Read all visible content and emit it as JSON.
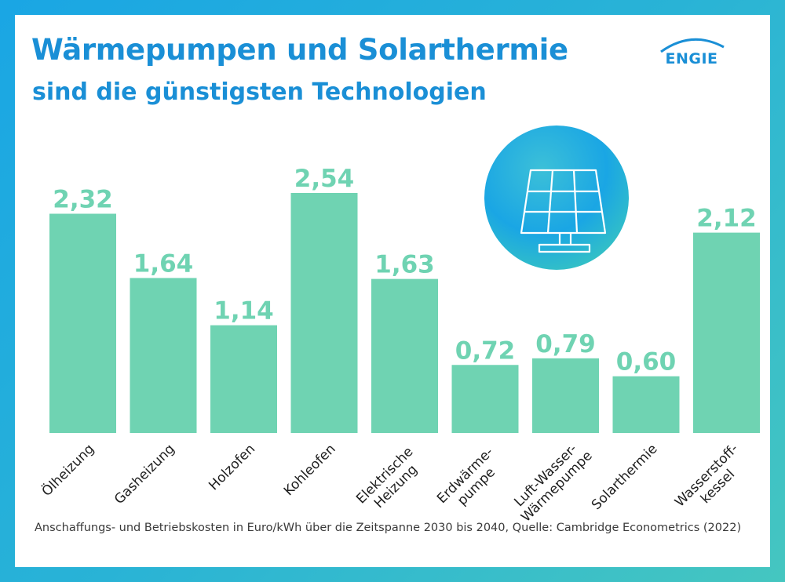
{
  "header": {
    "title": "Wärmepumpen und Solarthermie",
    "subtitle": "sind die günstigsten Technologien"
  },
  "brand": {
    "logo_text": "ENGIE",
    "color": "#1a8fd6"
  },
  "colors": {
    "bar": "#6fd3b2",
    "label": "#6fd3b2",
    "title": "#1a8fd6",
    "frame_start": "#1aa6e4",
    "frame_end": "#45c6c0"
  },
  "icon": {
    "name": "solar-panel-icon"
  },
  "chart_data": {
    "type": "bar",
    "title": "Wärmepumpen und Solarthermie",
    "subtitle": "sind die günstigsten Technologien",
    "categories": [
      [
        "Ölheizung"
      ],
      [
        "Gasheizung"
      ],
      [
        "Holzofen"
      ],
      [
        "Kohleofen"
      ],
      [
        "Elektrische",
        "Heizung"
      ],
      [
        "Erdwärme-",
        "pumpe"
      ],
      [
        "Luft-Wasser-",
        "Wärmepumpe"
      ],
      [
        "Solarthermie"
      ],
      [
        "Wasserstoff-",
        "kessel"
      ]
    ],
    "values": [
      2.32,
      1.64,
      1.14,
      2.54,
      1.63,
      0.72,
      0.79,
      0.6,
      2.12
    ],
    "value_labels": [
      "2,32",
      "1,64",
      "1,14",
      "2,54",
      "1,63",
      "0,72",
      "0,79",
      "0,60",
      "2,12"
    ],
    "ylim": [
      0,
      2.54
    ],
    "grid": false,
    "legend": "none"
  },
  "footer": {
    "source": "Anschaffungs- und Betriebskosten in Euro/kWh über die Zeitspanne 2030 bis 2040, Quelle: Cambridge Econometrics (2022)"
  }
}
